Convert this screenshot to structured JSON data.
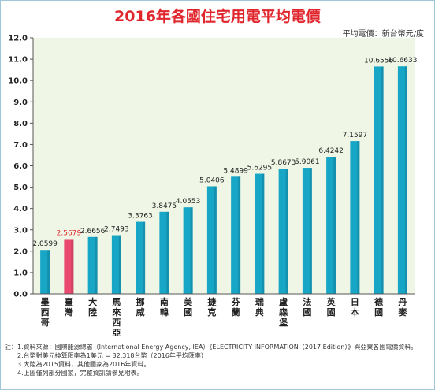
{
  "colors": {
    "title": "#e0262c",
    "bar": "#17a6c6",
    "bar_highlight": "#ea4a6f",
    "plot_bg": "#eff6e5",
    "axis": "#555555",
    "grid": "#ffffff",
    "highlight_label": "#e0262c"
  },
  "chart_data": {
    "type": "bar",
    "title": "2016年各國住宅用電平均電價",
    "unit_label": "平均電價：新台幣元/度",
    "categories": [
      "墨西哥",
      "臺灣",
      "大陸",
      "馬來西亞",
      "挪威",
      "南韓",
      "美國",
      "捷克",
      "芬蘭",
      "瑞典",
      "盧森堡",
      "法國",
      "英國",
      "日本",
      "德國",
      "丹麥"
    ],
    "values": [
      2.0599,
      2.5679,
      2.6656,
      2.7493,
      3.3763,
      3.8475,
      4.0553,
      5.0406,
      5.4899,
      5.6295,
      5.8673,
      5.9061,
      6.4242,
      7.1597,
      10.6556,
      10.6633
    ],
    "value_labels": [
      "2.0599",
      "2.5679",
      "2.6656",
      "2.7493",
      "3.3763",
      "3.8475",
      "4.0553",
      "5.0406",
      "5.4899",
      "5.6295",
      "5.8673",
      "5.9061",
      "6.4242",
      "7.1597",
      "10.6556",
      "10.6633"
    ],
    "highlight_category": "臺灣",
    "ylim": [
      0,
      12
    ],
    "yticks": [
      "0.0",
      "1.0",
      "2.0",
      "3.0",
      "4.0",
      "5.0",
      "6.0",
      "7.0",
      "8.0",
      "9.0",
      "10.0",
      "11.0",
      "12.0"
    ],
    "grid": false,
    "legend": "none"
  },
  "notes": {
    "prefix": "註：",
    "lines": [
      "1.資料來源：國際能源總署（International Energy Agency, IEA）《ELECTRICITY INFORMATION（2017 Edition）》與亞東各國電價資料。",
      "2.台幣對美元換算匯率為1美元 = 32.318台幣（2016年平均匯率）",
      "3.大陸為2015資料，其他國家為2016年資料。",
      "4.上圖僅列部分國家，完整資訊請參見附表。"
    ]
  }
}
